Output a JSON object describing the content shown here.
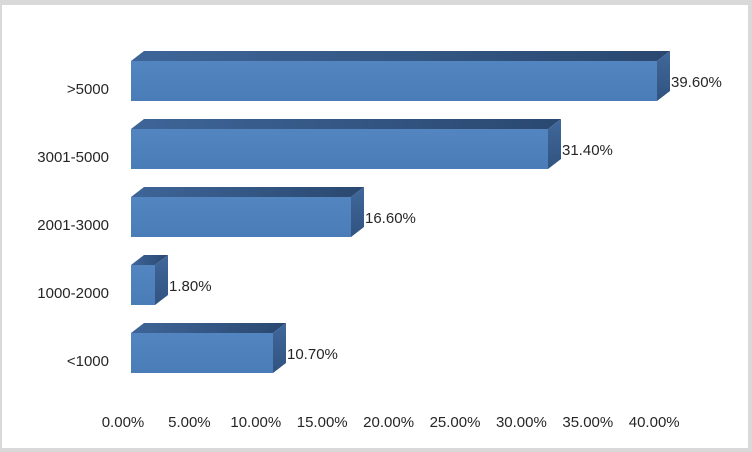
{
  "chart_data": {
    "type": "bar",
    "orientation": "horizontal",
    "style": "3d",
    "title": "",
    "xlabel": "",
    "ylabel": "",
    "legend": "none",
    "gridlines": false,
    "categories": [
      ">5000",
      "3001-5000",
      "2001-3000",
      "1000-2000",
      "<1000"
    ],
    "values": [
      39.6,
      31.4,
      16.6,
      1.8,
      10.7
    ],
    "value_labels": [
      "39.60%",
      "31.40%",
      "16.60%",
      "1.80%",
      "10.70%"
    ],
    "x_ticks": [
      "0.00%",
      "5.00%",
      "10.00%",
      "15.00%",
      "20.00%",
      "25.00%",
      "30.00%",
      "35.00%",
      "40.00%"
    ],
    "xlim": [
      0,
      40
    ],
    "colors": {
      "bar_front": "#4e81bd",
      "bar_top": "#2f507e",
      "bar_side": "#3a6296",
      "text": "#262626",
      "frame_border": "#d9d9d9",
      "background": "#ffffff"
    }
  }
}
